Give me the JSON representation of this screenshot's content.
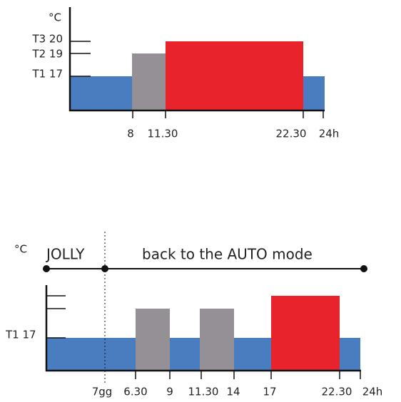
{
  "top": {
    "unit": "°C",
    "levels": [
      "T3 20",
      "T2 19",
      "T1 17"
    ],
    "times": [
      "8",
      "11.30",
      "22.30",
      "24h"
    ]
  },
  "bottom": {
    "unit": "°C",
    "jolly": "JOLLY",
    "note": "back to the AUTO mode",
    "level": "T1 17",
    "times": [
      "7gg",
      "6.30",
      "9",
      "11.30",
      "14",
      "17",
      "22.30",
      "24h"
    ]
  }
}
